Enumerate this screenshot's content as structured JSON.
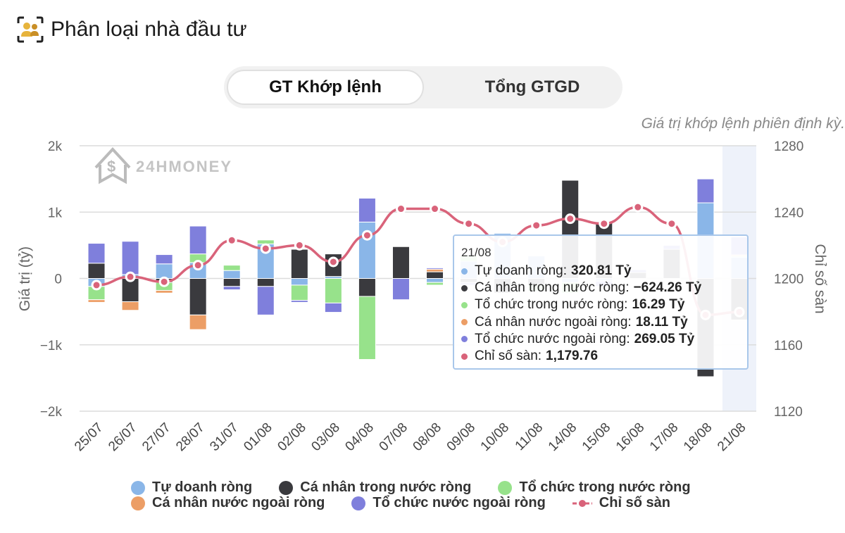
{
  "header": {
    "title": "Phân loại nhà đầu tư",
    "icon": "investors-icon"
  },
  "toggle": {
    "active_label": "GT Khớp lệnh",
    "inactive_label": "Tổng GTGD"
  },
  "note": "Giá trị khớp lệnh phiên định kỳ.",
  "watermark": "24HMONEY",
  "chart_data": {
    "type": "bar",
    "stacked": true,
    "categories": [
      "25/07",
      "26/07",
      "27/07",
      "28/07",
      "31/07",
      "01/08",
      "02/08",
      "03/08",
      "04/08",
      "07/08",
      "08/08",
      "09/08",
      "10/08",
      "11/08",
      "14/08",
      "15/08",
      "16/08",
      "17/08",
      "18/08",
      "21/08"
    ],
    "ylabel": "Giá trị (tỷ)",
    "y2label": "Chỉ số sàn",
    "ylim": [
      -2000,
      2000
    ],
    "y2lim": [
      1120,
      1280
    ],
    "yticks": [
      "2k",
      "1k",
      "0",
      "−1k",
      "−2k"
    ],
    "y2ticks": [
      "1280",
      "1240",
      "1200",
      "1160",
      "1120"
    ],
    "grid": true,
    "legend_position": "bottom",
    "series": [
      {
        "name": "Tự doanh ròng",
        "color": "#8ab6e8",
        "values": [
          -120,
          60,
          220,
          240,
          120,
          520,
          -100,
          30,
          850,
          0,
          -60,
          260,
          680,
          340,
          -60,
          -40,
          0,
          -10,
          1140,
          320.81
        ]
      },
      {
        "name": "Cá nhân trong nước ròng",
        "color": "#3a3a3e",
        "values": [
          230,
          -350,
          -60,
          -550,
          -120,
          -120,
          440,
          340,
          -270,
          480,
          100,
          -60,
          -220,
          -90,
          1480,
          850,
          90,
          440,
          -1480,
          -624.26
        ]
      },
      {
        "name": "Tổ chức trong nước ròng",
        "color": "#97e28b",
        "values": [
          -200,
          0,
          -120,
          130,
          80,
          60,
          -230,
          -370,
          -950,
          0,
          -40,
          80,
          0,
          -100,
          -160,
          0,
          0,
          0,
          0,
          16.29
        ]
      },
      {
        "name": "Cá nhân nước ngoài ròng",
        "color": "#ec9e66",
        "values": [
          -40,
          -130,
          -40,
          -220,
          0,
          0,
          0,
          0,
          0,
          0,
          40,
          0,
          0,
          0,
          0,
          0,
          0,
          0,
          0,
          18.11
        ]
      },
      {
        "name": "Tổ chức nước ngoài ròng",
        "color": "#7f7fdc",
        "values": [
          300,
          500,
          140,
          420,
          -50,
          -430,
          -30,
          -140,
          360,
          -320,
          20,
          -40,
          0,
          0,
          0,
          -80,
          40,
          60,
          360,
          269.05
        ]
      }
    ],
    "line": {
      "name": "Chỉ số sàn",
      "color": "#d9637a",
      "axis": "right",
      "values": [
        1196,
        1201,
        1198,
        1208,
        1223,
        1218,
        1220,
        1210,
        1226,
        1242,
        1242,
        1233,
        1222,
        1232,
        1236,
        1233,
        1243,
        1233,
        1178,
        1179.76
      ]
    },
    "highlight_category": "21/08"
  },
  "tooltip": {
    "date": "21/08",
    "rows": [
      {
        "label": "Tự doanh ròng:",
        "value": "320.81 Tỷ",
        "color": "#8ab6e8"
      },
      {
        "label": "Cá nhân trong nước ròng:",
        "value": "−624.26 Tỷ",
        "color": "#3a3a3e"
      },
      {
        "label": "Tổ chức trong nước ròng:",
        "value": "16.29 Tỷ",
        "color": "#97e28b"
      },
      {
        "label": "Cá nhân nước ngoài ròng:",
        "value": "18.11 Tỷ",
        "color": "#ec9e66"
      },
      {
        "label": "Tổ chức nước ngoài ròng:",
        "value": "269.05 Tỷ",
        "color": "#7f7fdc"
      },
      {
        "label": "Chỉ số sàn:",
        "value": "1,179.76",
        "color": "#d9637a"
      }
    ]
  },
  "legend": {
    "row1": [
      {
        "label": "Tự doanh ròng",
        "color": "#8ab6e8"
      },
      {
        "label": "Cá nhân trong nước ròng",
        "color": "#3a3a3e"
      },
      {
        "label": "Tổ chức trong nước ròng",
        "color": "#97e28b"
      }
    ],
    "row2": [
      {
        "label": "Cá nhân nước ngoài ròng",
        "color": "#ec9e66"
      },
      {
        "label": "Tổ chức nước ngoài ròng",
        "color": "#7f7fdc"
      },
      {
        "label": "Chỉ số sàn",
        "color": "#d9637a",
        "line": true
      }
    ]
  }
}
